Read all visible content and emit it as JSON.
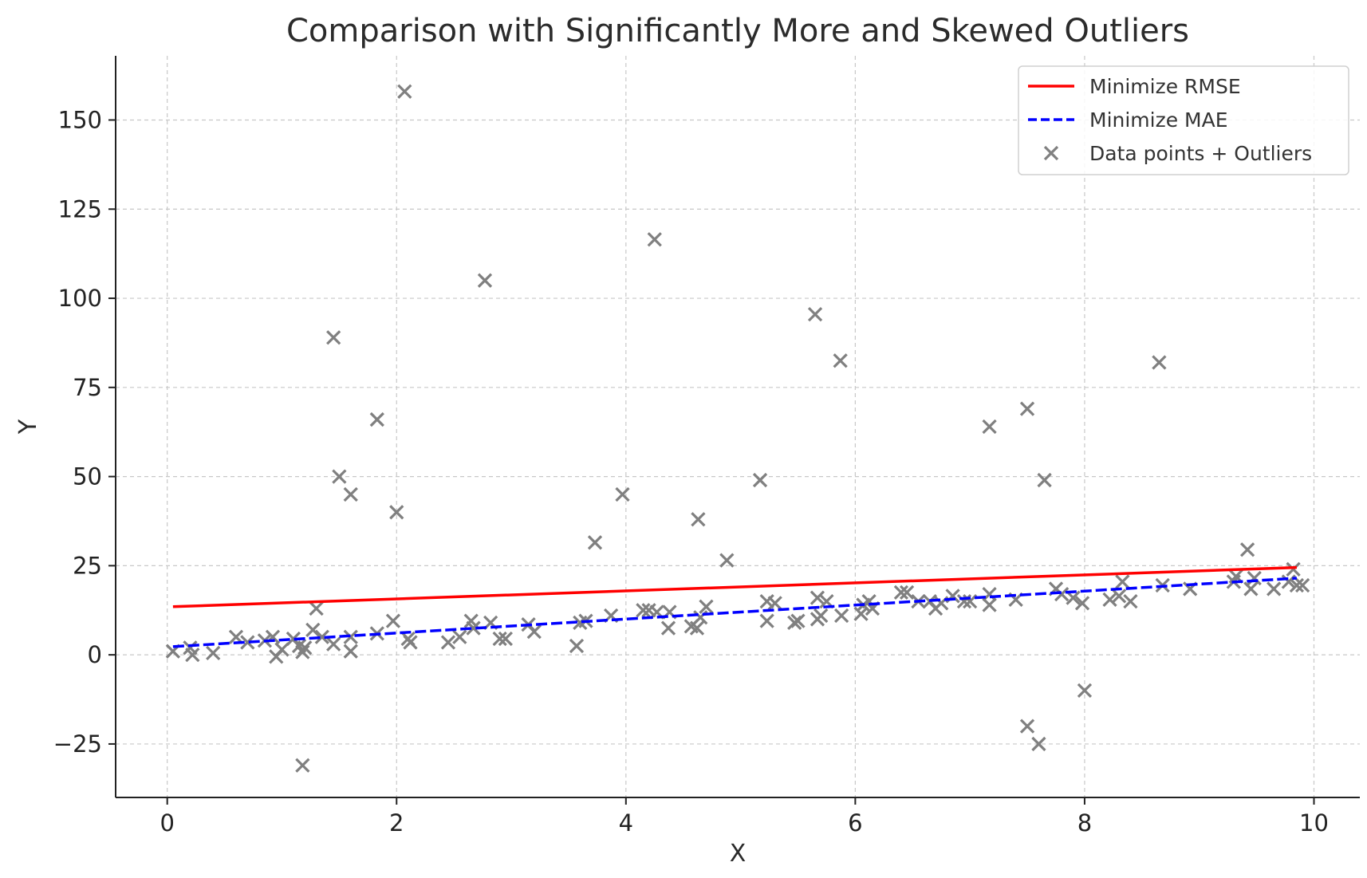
{
  "chart_data": {
    "type": "scatter",
    "title": "Comparison with Significantly More and Skewed Outliers",
    "xlabel": "X",
    "ylabel": "Y",
    "xlim": [
      -0.45,
      10.4
    ],
    "ylim": [
      -40,
      168
    ],
    "x_ticks": [
      0,
      2,
      4,
      6,
      8,
      10
    ],
    "x_tick_labels": [
      "0",
      "2",
      "4",
      "6",
      "8",
      "10"
    ],
    "y_ticks": [
      -25,
      0,
      25,
      50,
      75,
      100,
      125,
      150
    ],
    "y_tick_labels": [
      "−25",
      "0",
      "25",
      "50",
      "75",
      "100",
      "125",
      "150"
    ],
    "grid": true,
    "legend_position": "top-right",
    "lines": [
      {
        "name": "Minimize RMSE",
        "color": "#ff0000",
        "style": "solid",
        "x": [
          0.05,
          9.85
        ],
        "y": [
          13.5,
          24.5
        ]
      },
      {
        "name": "Minimize MAE",
        "color": "#0000ff",
        "style": "dashed",
        "x": [
          0.05,
          9.85
        ],
        "y": [
          2.3,
          21.5
        ]
      }
    ],
    "scatter": {
      "name": "Data points + Outliers",
      "color": "#808080",
      "marker": "x",
      "points": [
        [
          0.05,
          1.0
        ],
        [
          0.2,
          2.0
        ],
        [
          0.22,
          0.0
        ],
        [
          0.4,
          0.5
        ],
        [
          0.6,
          5.0
        ],
        [
          0.7,
          3.5
        ],
        [
          0.85,
          4.0
        ],
        [
          0.92,
          5.0
        ],
        [
          0.95,
          -0.5
        ],
        [
          1.0,
          1.5
        ],
        [
          1.1,
          4.5
        ],
        [
          1.15,
          2.5
        ],
        [
          1.18,
          0.8
        ],
        [
          1.2,
          2.0
        ],
        [
          1.27,
          7.0
        ],
        [
          1.3,
          13.0
        ],
        [
          1.35,
          5.0
        ],
        [
          1.45,
          3.0
        ],
        [
          1.6,
          5.0
        ],
        [
          1.6,
          1.0
        ],
        [
          1.83,
          6.0
        ],
        [
          1.97,
          9.5
        ],
        [
          2.1,
          4.5
        ],
        [
          2.12,
          3.5
        ],
        [
          2.45,
          3.5
        ],
        [
          2.55,
          5.0
        ],
        [
          2.65,
          9.5
        ],
        [
          2.67,
          7.5
        ],
        [
          2.82,
          9.0
        ],
        [
          2.9,
          4.5
        ],
        [
          2.95,
          4.5
        ],
        [
          3.15,
          8.5
        ],
        [
          3.2,
          6.5
        ],
        [
          3.57,
          2.5
        ],
        [
          3.6,
          9.0
        ],
        [
          3.65,
          9.5
        ],
        [
          3.87,
          11.0
        ],
        [
          4.15,
          12.5
        ],
        [
          4.2,
          12.5
        ],
        [
          4.27,
          12.0
        ],
        [
          4.37,
          7.5
        ],
        [
          4.38,
          12.0
        ],
        [
          4.57,
          8.0
        ],
        [
          4.62,
          7.5
        ],
        [
          4.65,
          10.5
        ],
        [
          4.7,
          13.5
        ],
        [
          5.23,
          15.0
        ],
        [
          5.23,
          9.5
        ],
        [
          5.3,
          14.5
        ],
        [
          5.47,
          9.0
        ],
        [
          5.5,
          9.5
        ],
        [
          5.67,
          16.0
        ],
        [
          5.67,
          10.0
        ],
        [
          5.7,
          11.0
        ],
        [
          5.75,
          15.0
        ],
        [
          5.88,
          11.0
        ],
        [
          6.05,
          11.5
        ],
        [
          6.07,
          14.0
        ],
        [
          6.12,
          15.0
        ],
        [
          6.15,
          13.0
        ],
        [
          6.4,
          17.5
        ],
        [
          6.45,
          17.5
        ],
        [
          6.55,
          15.0
        ],
        [
          6.65,
          15.0
        ],
        [
          6.7,
          13.0
        ],
        [
          6.75,
          14.5
        ],
        [
          6.85,
          16.5
        ],
        [
          6.95,
          15.0
        ],
        [
          7.0,
          15.0
        ],
        [
          7.17,
          17.0
        ],
        [
          7.17,
          14.0
        ],
        [
          7.4,
          15.5
        ],
        [
          7.75,
          18.5
        ],
        [
          7.8,
          17.0
        ],
        [
          7.9,
          16.0
        ],
        [
          7.98,
          14.5
        ],
        [
          8.22,
          15.5
        ],
        [
          8.3,
          16.5
        ],
        [
          8.33,
          20.5
        ],
        [
          8.4,
          15.0
        ],
        [
          8.68,
          19.5
        ],
        [
          8.92,
          18.5
        ],
        [
          9.3,
          20.5
        ],
        [
          9.32,
          22.0
        ],
        [
          9.45,
          18.5
        ],
        [
          9.48,
          21.5
        ],
        [
          9.65,
          18.5
        ],
        [
          9.78,
          20.5
        ],
        [
          9.82,
          24.0
        ],
        [
          9.85,
          19.5
        ],
        [
          9.9,
          19.5
        ],
        [
          1.18,
          -31.0
        ],
        [
          1.45,
          89.0
        ],
        [
          1.5,
          50.0
        ],
        [
          1.6,
          45.0
        ],
        [
          1.83,
          66.0
        ],
        [
          2.0,
          40.0
        ],
        [
          2.07,
          158.0
        ],
        [
          2.77,
          105.0
        ],
        [
          3.73,
          31.5
        ],
        [
          3.97,
          45.0
        ],
        [
          4.25,
          116.5
        ],
        [
          4.63,
          38.0
        ],
        [
          4.88,
          26.5
        ],
        [
          5.17,
          49.0
        ],
        [
          5.65,
          95.5
        ],
        [
          5.87,
          82.5
        ],
        [
          7.17,
          64.0
        ],
        [
          7.5,
          69.0
        ],
        [
          7.5,
          -20.0
        ],
        [
          7.6,
          -25.0
        ],
        [
          7.65,
          49.0
        ],
        [
          8.0,
          -10.0
        ],
        [
          8.65,
          82.0
        ],
        [
          9.42,
          29.5
        ]
      ]
    }
  }
}
